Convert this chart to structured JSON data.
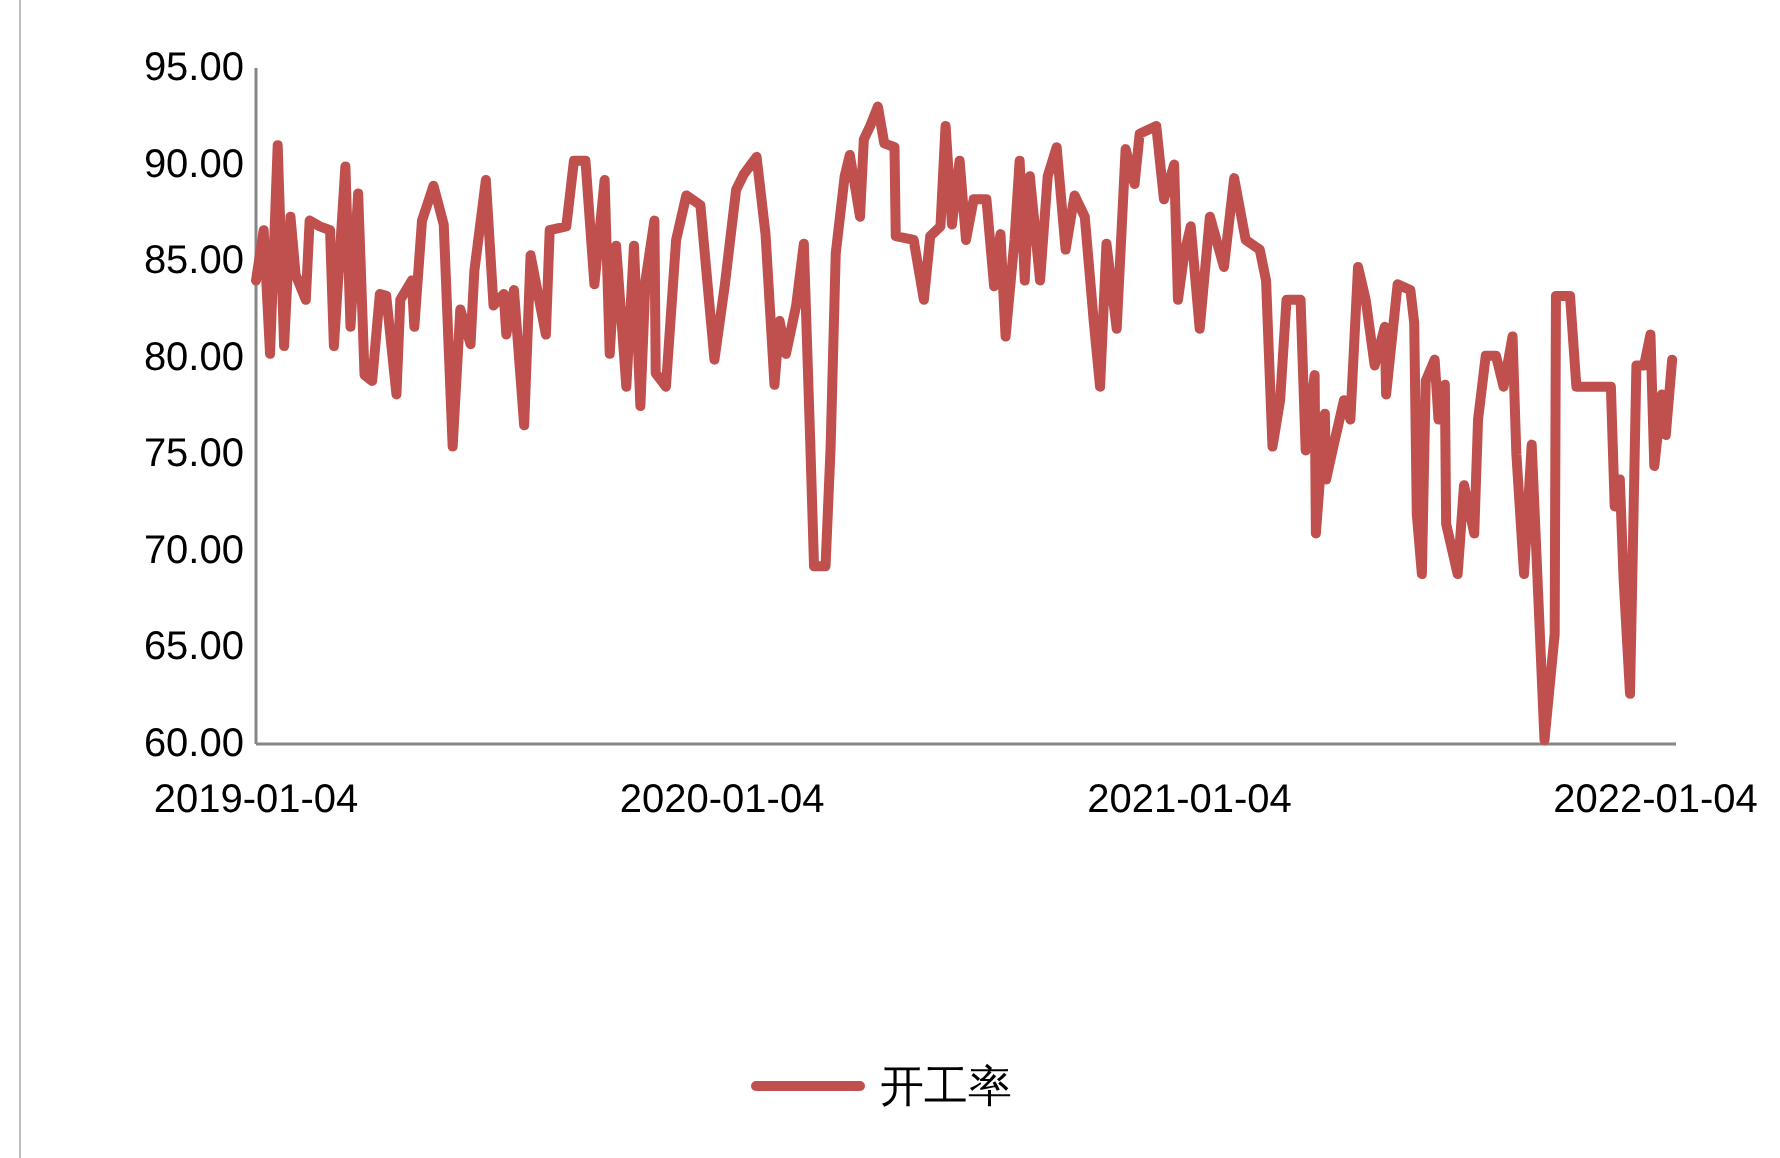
{
  "chart_data": {
    "type": "line",
    "x": [
      "2019-01-04",
      "2019-01-10",
      "2019-01-15",
      "2019-01-21",
      "2019-01-26",
      "2019-01-31",
      "2019-02-04",
      "2019-02-12",
      "2019-02-15",
      "2019-02-23",
      "2019-03-03",
      "2019-03-06",
      "2019-03-15",
      "2019-03-19",
      "2019-03-25",
      "2019-03-30",
      "2019-04-05",
      "2019-04-11",
      "2019-04-16",
      "2019-04-24",
      "2019-04-27",
      "2019-05-06",
      "2019-05-08",
      "2019-05-14",
      "2019-05-23",
      "2019-05-31",
      "2019-06-07",
      "2019-06-13",
      "2019-06-21",
      "2019-06-24",
      "2019-07-03",
      "2019-07-09",
      "2019-07-17",
      "2019-07-19",
      "2019-07-25",
      "2019-08-02",
      "2019-08-07",
      "2019-08-19",
      "2019-08-22",
      "2019-09-04",
      "2019-09-10",
      "2019-09-19",
      "2019-09-26",
      "2019-10-04",
      "2019-10-08",
      "2019-10-13",
      "2019-10-21",
      "2019-10-27",
      "2019-11-01",
      "2019-11-05",
      "2019-11-12",
      "2019-11-13",
      "2019-11-21",
      "2019-11-29",
      "2019-12-07",
      "2019-12-18",
      "2019-12-29",
      "2020-01-06",
      "2020-01-15",
      "2020-01-21",
      "2020-01-31",
      "2020-02-07",
      "2020-02-14",
      "2020-02-18",
      "2020-02-23",
      "2020-03-02",
      "2020-03-08",
      "2020-03-13",
      "2020-03-16",
      "2020-03-25",
      "2020-03-29",
      "2020-04-02",
      "2020-04-09",
      "2020-04-13",
      "2020-04-21",
      "2020-04-24",
      "2020-04-29",
      "2020-05-05",
      "2020-05-10",
      "2020-05-18",
      "2020-05-19",
      "2020-06-02",
      "2020-06-10",
      "2020-06-15",
      "2020-06-23",
      "2020-06-27",
      "2020-07-02",
      "2020-07-08",
      "2020-07-13",
      "2020-07-19",
      "2020-07-29",
      "2020-08-04",
      "2020-08-09",
      "2020-08-13",
      "2020-08-20",
      "2020-08-24",
      "2020-08-28",
      "2020-09-01",
      "2020-09-09",
      "2020-09-15",
      "2020-09-22",
      "2020-09-29",
      "2020-10-06",
      "2020-10-14",
      "2020-10-21",
      "2020-10-26",
      "2020-10-31",
      "2020-11-08",
      "2020-11-15",
      "2020-11-22",
      "2020-11-26",
      "2020-12-09",
      "2020-12-15",
      "2020-12-23",
      "2020-12-26",
      "2020-12-31",
      "2021-01-05",
      "2021-01-12",
      "2021-01-20",
      "2021-01-31",
      "2021-02-08",
      "2021-02-17",
      "2021-02-28",
      "2021-03-05",
      "2021-03-10",
      "2021-03-16",
      "2021-03-21",
      "2021-04-01",
      "2021-04-05",
      "2021-04-12",
      "2021-04-13",
      "2021-04-20",
      "2021-04-21",
      "2021-04-27",
      "2021-05-05",
      "2021-05-10",
      "2021-05-16",
      "2021-05-22",
      "2021-05-29",
      "2021-06-06",
      "2021-06-07",
      "2021-06-13",
      "2021-06-16",
      "2021-06-26",
      "2021-06-29",
      "2021-07-01",
      "2021-07-05",
      "2021-07-08",
      "2021-07-15",
      "2021-07-18",
      "2021-07-23",
      "2021-07-24",
      "2021-08-02",
      "2021-08-07",
      "2021-08-15",
      "2021-08-18",
      "2021-08-24",
      "2021-09-01",
      "2021-09-07",
      "2021-09-14",
      "2021-09-17",
      "2021-09-23",
      "2021-09-29",
      "2021-10-09",
      "2021-10-17",
      "2021-10-18",
      "2021-10-29",
      "2021-11-03",
      "2021-11-30",
      "2021-12-03",
      "2021-12-07",
      "2021-12-10",
      "2021-12-15",
      "2021-12-20",
      "2021-12-26",
      "2021-12-31",
      "2022-01-03",
      "2022-01-09",
      "2022-01-12",
      "2022-01-17"
    ],
    "series": [
      {
        "name": "开工率",
        "color": "#c0504d",
        "values": [
          84.0,
          86.6,
          80.2,
          91.0,
          80.6,
          87.3,
          84.3,
          83.0,
          87.1,
          86.8,
          86.6,
          80.6,
          89.9,
          81.6,
          88.5,
          79.1,
          78.8,
          83.3,
          83.2,
          78.1,
          83.0,
          84.0,
          81.6,
          87.1,
          88.9,
          86.9,
          75.4,
          82.5,
          80.7,
          84.5,
          89.2,
          82.7,
          83.3,
          81.2,
          83.5,
          76.5,
          85.3,
          81.2,
          86.6,
          86.8,
          90.2,
          90.2,
          83.8,
          89.2,
          80.2,
          85.8,
          78.5,
          85.8,
          77.5,
          84.0,
          87.1,
          79.2,
          78.5,
          86.1,
          88.4,
          87.9,
          79.9,
          83.7,
          88.7,
          89.5,
          90.4,
          86.4,
          78.6,
          81.9,
          80.2,
          82.7,
          85.9,
          75.7,
          69.2,
          69.2,
          75.4,
          85.4,
          89.4,
          90.5,
          87.3,
          91.3,
          92.0,
          93.0,
          91.1,
          90.9,
          86.3,
          86.1,
          83.0,
          86.3,
          86.8,
          92.0,
          86.9,
          90.2,
          86.1,
          88.2,
          88.2,
          83.7,
          86.4,
          81.1,
          86.1,
          90.2,
          84.0,
          89.4,
          84.0,
          89.4,
          90.9,
          85.6,
          88.4,
          87.3,
          81.9,
          78.5,
          85.9,
          81.5,
          90.8,
          89.0,
          91.6,
          92.0,
          88.2,
          90.0,
          83.0,
          85.4,
          86.8,
          81.5,
          87.3,
          84.7,
          89.3,
          86.1,
          85.6,
          84.0,
          75.4,
          77.8,
          83.0,
          83.0,
          75.2,
          79.1,
          70.9,
          77.1,
          73.7,
          75.5,
          77.8,
          76.8,
          84.7,
          83.0,
          79.6,
          81.6,
          78.1,
          81.9,
          83.8,
          83.5,
          81.8,
          71.9,
          68.8,
          78.8,
          79.9,
          76.8,
          78.6,
          71.4,
          68.8,
          73.4,
          70.9,
          76.8,
          80.1,
          80.1,
          78.5,
          81.1,
          75.0,
          68.8,
          75.5,
          60.2,
          65.7,
          83.2,
          83.2,
          78.5,
          78.5,
          72.3,
          73.7,
          68.5,
          62.6,
          79.6,
          79.6,
          81.2,
          74.4,
          78.1,
          76.0,
          79.9
        ]
      }
    ],
    "xlim": [
      "2019-01-04",
      "2022-01-20"
    ],
    "xticks": [
      "2019-01-04",
      "2020-01-04",
      "2021-01-04",
      "2022-01-04"
    ],
    "ylim": [
      60,
      95
    ],
    "yticks": [
      {
        "value": 60,
        "label": "60.00"
      },
      {
        "value": 65,
        "label": "65.00"
      },
      {
        "value": 70,
        "label": "70.00"
      },
      {
        "value": 75,
        "label": "75.00"
      },
      {
        "value": 80,
        "label": "80.00"
      },
      {
        "value": 85,
        "label": "85.00"
      },
      {
        "value": 90,
        "label": "90.00"
      },
      {
        "value": 95,
        "label": "95.00"
      }
    ],
    "grid": false,
    "legend": "bottom",
    "marker": "none",
    "line_style": "solid"
  }
}
